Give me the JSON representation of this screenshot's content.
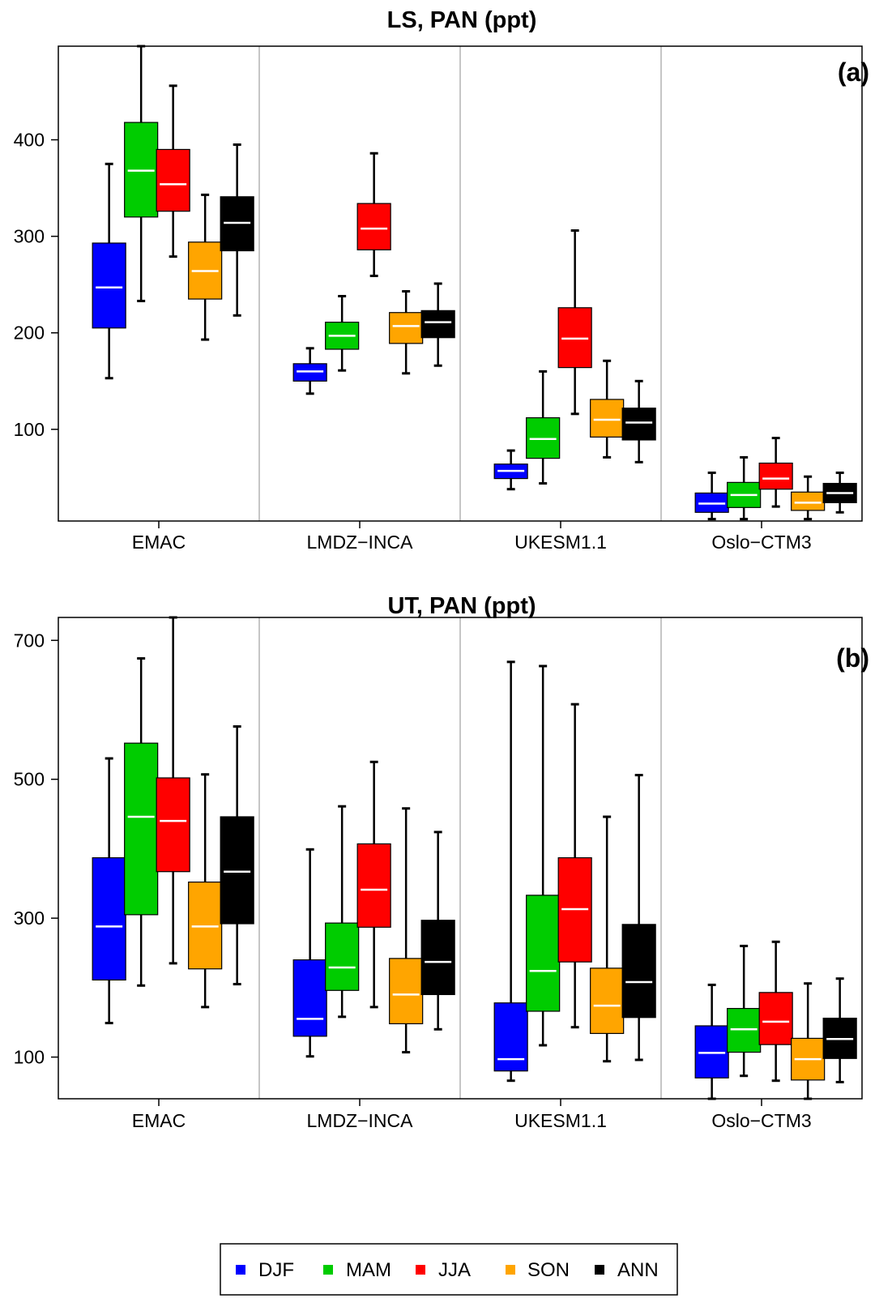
{
  "legend": {
    "items": [
      {
        "label": "DJF",
        "color": "#0000FF"
      },
      {
        "label": "MAM",
        "color": "#00CC00"
      },
      {
        "label": "JJA",
        "color": "#FF0000"
      },
      {
        "label": "SON",
        "color": "#FFA500"
      },
      {
        "label": "ANN",
        "color": "#000000"
      }
    ]
  },
  "chart_data": [
    {
      "type": "box",
      "title": "LS, PAN (ppt)",
      "panel_label": "(a)",
      "categories": [
        "EMAC",
        "LMDZ−INCA",
        "UKESM1.1",
        "Oslo−CTM3"
      ],
      "ylim": [
        5,
        497
      ],
      "yticks": [
        100,
        200,
        300,
        400
      ],
      "groups": [
        [
          {
            "series": "DJF",
            "min": 153,
            "q1": 205,
            "median": 247,
            "q3": 293,
            "max": 375
          },
          {
            "series": "MAM",
            "min": 233,
            "q1": 320,
            "median": 368,
            "q3": 418,
            "max": 497
          },
          {
            "series": "JJA",
            "min": 279,
            "q1": 326,
            "median": 354,
            "q3": 390,
            "max": 456
          },
          {
            "series": "SON",
            "min": 193,
            "q1": 235,
            "median": 264,
            "q3": 294,
            "max": 343
          },
          {
            "series": "ANN",
            "min": 218,
            "q1": 285,
            "median": 314,
            "q3": 341,
            "max": 395
          }
        ],
        [
          {
            "series": "DJF",
            "min": 137,
            "q1": 150,
            "median": 160,
            "q3": 168,
            "max": 184
          },
          {
            "series": "MAM",
            "min": 161,
            "q1": 183,
            "median": 197,
            "q3": 211,
            "max": 238
          },
          {
            "series": "JJA",
            "min": 259,
            "q1": 286,
            "median": 308,
            "q3": 334,
            "max": 386
          },
          {
            "series": "SON",
            "min": 158,
            "q1": 189,
            "median": 207,
            "q3": 221,
            "max": 243
          },
          {
            "series": "ANN",
            "min": 166,
            "q1": 195,
            "median": 211,
            "q3": 223,
            "max": 251
          }
        ],
        [
          {
            "series": "DJF",
            "min": 38,
            "q1": 49,
            "median": 57,
            "q3": 64,
            "max": 78
          },
          {
            "series": "MAM",
            "min": 44,
            "q1": 70,
            "median": 90,
            "q3": 112,
            "max": 160
          },
          {
            "series": "JJA",
            "min": 116,
            "q1": 164,
            "median": 194,
            "q3": 226,
            "max": 306
          },
          {
            "series": "SON",
            "min": 71,
            "q1": 92,
            "median": 110,
            "q3": 131,
            "max": 171
          },
          {
            "series": "ANN",
            "min": 66,
            "q1": 89,
            "median": 107,
            "q3": 122,
            "max": 150
          }
        ],
        [
          {
            "series": "DJF",
            "min": 7,
            "q1": 14,
            "median": 23,
            "q3": 34,
            "max": 55
          },
          {
            "series": "MAM",
            "min": 7,
            "q1": 19,
            "median": 32,
            "q3": 45,
            "max": 71
          },
          {
            "series": "JJA",
            "min": 20,
            "q1": 38,
            "median": 49,
            "q3": 65,
            "max": 91
          },
          {
            "series": "SON",
            "min": 7,
            "q1": 16,
            "median": 24,
            "q3": 35,
            "max": 51
          },
          {
            "series": "ANN",
            "min": 14,
            "q1": 24,
            "median": 34,
            "q3": 44,
            "max": 55
          }
        ]
      ]
    },
    {
      "type": "box",
      "title": "UT, PAN (ppt)",
      "panel_label": "(b)",
      "categories": [
        "EMAC",
        "LMDZ−INCA",
        "UKESM1.1",
        "Oslo−CTM3"
      ],
      "ylim": [
        40,
        733
      ],
      "yticks": [
        100,
        300,
        500,
        700
      ],
      "groups": [
        [
          {
            "series": "DJF",
            "min": 149,
            "q1": 211,
            "median": 288,
            "q3": 387,
            "max": 530
          },
          {
            "series": "MAM",
            "min": 203,
            "q1": 305,
            "median": 446,
            "q3": 552,
            "max": 674
          },
          {
            "series": "JJA",
            "min": 235,
            "q1": 367,
            "median": 440,
            "q3": 502,
            "max": 733
          },
          {
            "series": "SON",
            "min": 172,
            "q1": 227,
            "median": 288,
            "q3": 352,
            "max": 507
          },
          {
            "series": "ANN",
            "min": 205,
            "q1": 292,
            "median": 367,
            "q3": 446,
            "max": 576
          }
        ],
        [
          {
            "series": "DJF",
            "min": 101,
            "q1": 130,
            "median": 155,
            "q3": 240,
            "max": 399
          },
          {
            "series": "MAM",
            "min": 158,
            "q1": 196,
            "median": 229,
            "q3": 293,
            "max": 461
          },
          {
            "series": "JJA",
            "min": 172,
            "q1": 287,
            "median": 341,
            "q3": 407,
            "max": 525
          },
          {
            "series": "SON",
            "min": 107,
            "q1": 148,
            "median": 190,
            "q3": 242,
            "max": 458
          },
          {
            "series": "ANN",
            "min": 140,
            "q1": 190,
            "median": 237,
            "q3": 297,
            "max": 424
          }
        ],
        [
          {
            "series": "DJF",
            "min": 66,
            "q1": 80,
            "median": 97,
            "q3": 178,
            "max": 669
          },
          {
            "series": "MAM",
            "min": 117,
            "q1": 166,
            "median": 224,
            "q3": 333,
            "max": 663
          },
          {
            "series": "JJA",
            "min": 143,
            "q1": 237,
            "median": 313,
            "q3": 387,
            "max": 608
          },
          {
            "series": "SON",
            "min": 94,
            "q1": 134,
            "median": 174,
            "q3": 228,
            "max": 446
          },
          {
            "series": "ANN",
            "min": 96,
            "q1": 157,
            "median": 208,
            "q3": 291,
            "max": 506
          }
        ],
        [
          {
            "series": "DJF",
            "min": 40,
            "q1": 70,
            "median": 106,
            "q3": 145,
            "max": 204
          },
          {
            "series": "MAM",
            "min": 73,
            "q1": 107,
            "median": 140,
            "q3": 170,
            "max": 260
          },
          {
            "series": "JJA",
            "min": 66,
            "q1": 118,
            "median": 151,
            "q3": 193,
            "max": 266
          },
          {
            "series": "SON",
            "min": 40,
            "q1": 67,
            "median": 97,
            "q3": 127,
            "max": 206
          },
          {
            "series": "ANN",
            "min": 64,
            "q1": 98,
            "median": 126,
            "q3": 156,
            "max": 213
          }
        ]
      ]
    }
  ]
}
